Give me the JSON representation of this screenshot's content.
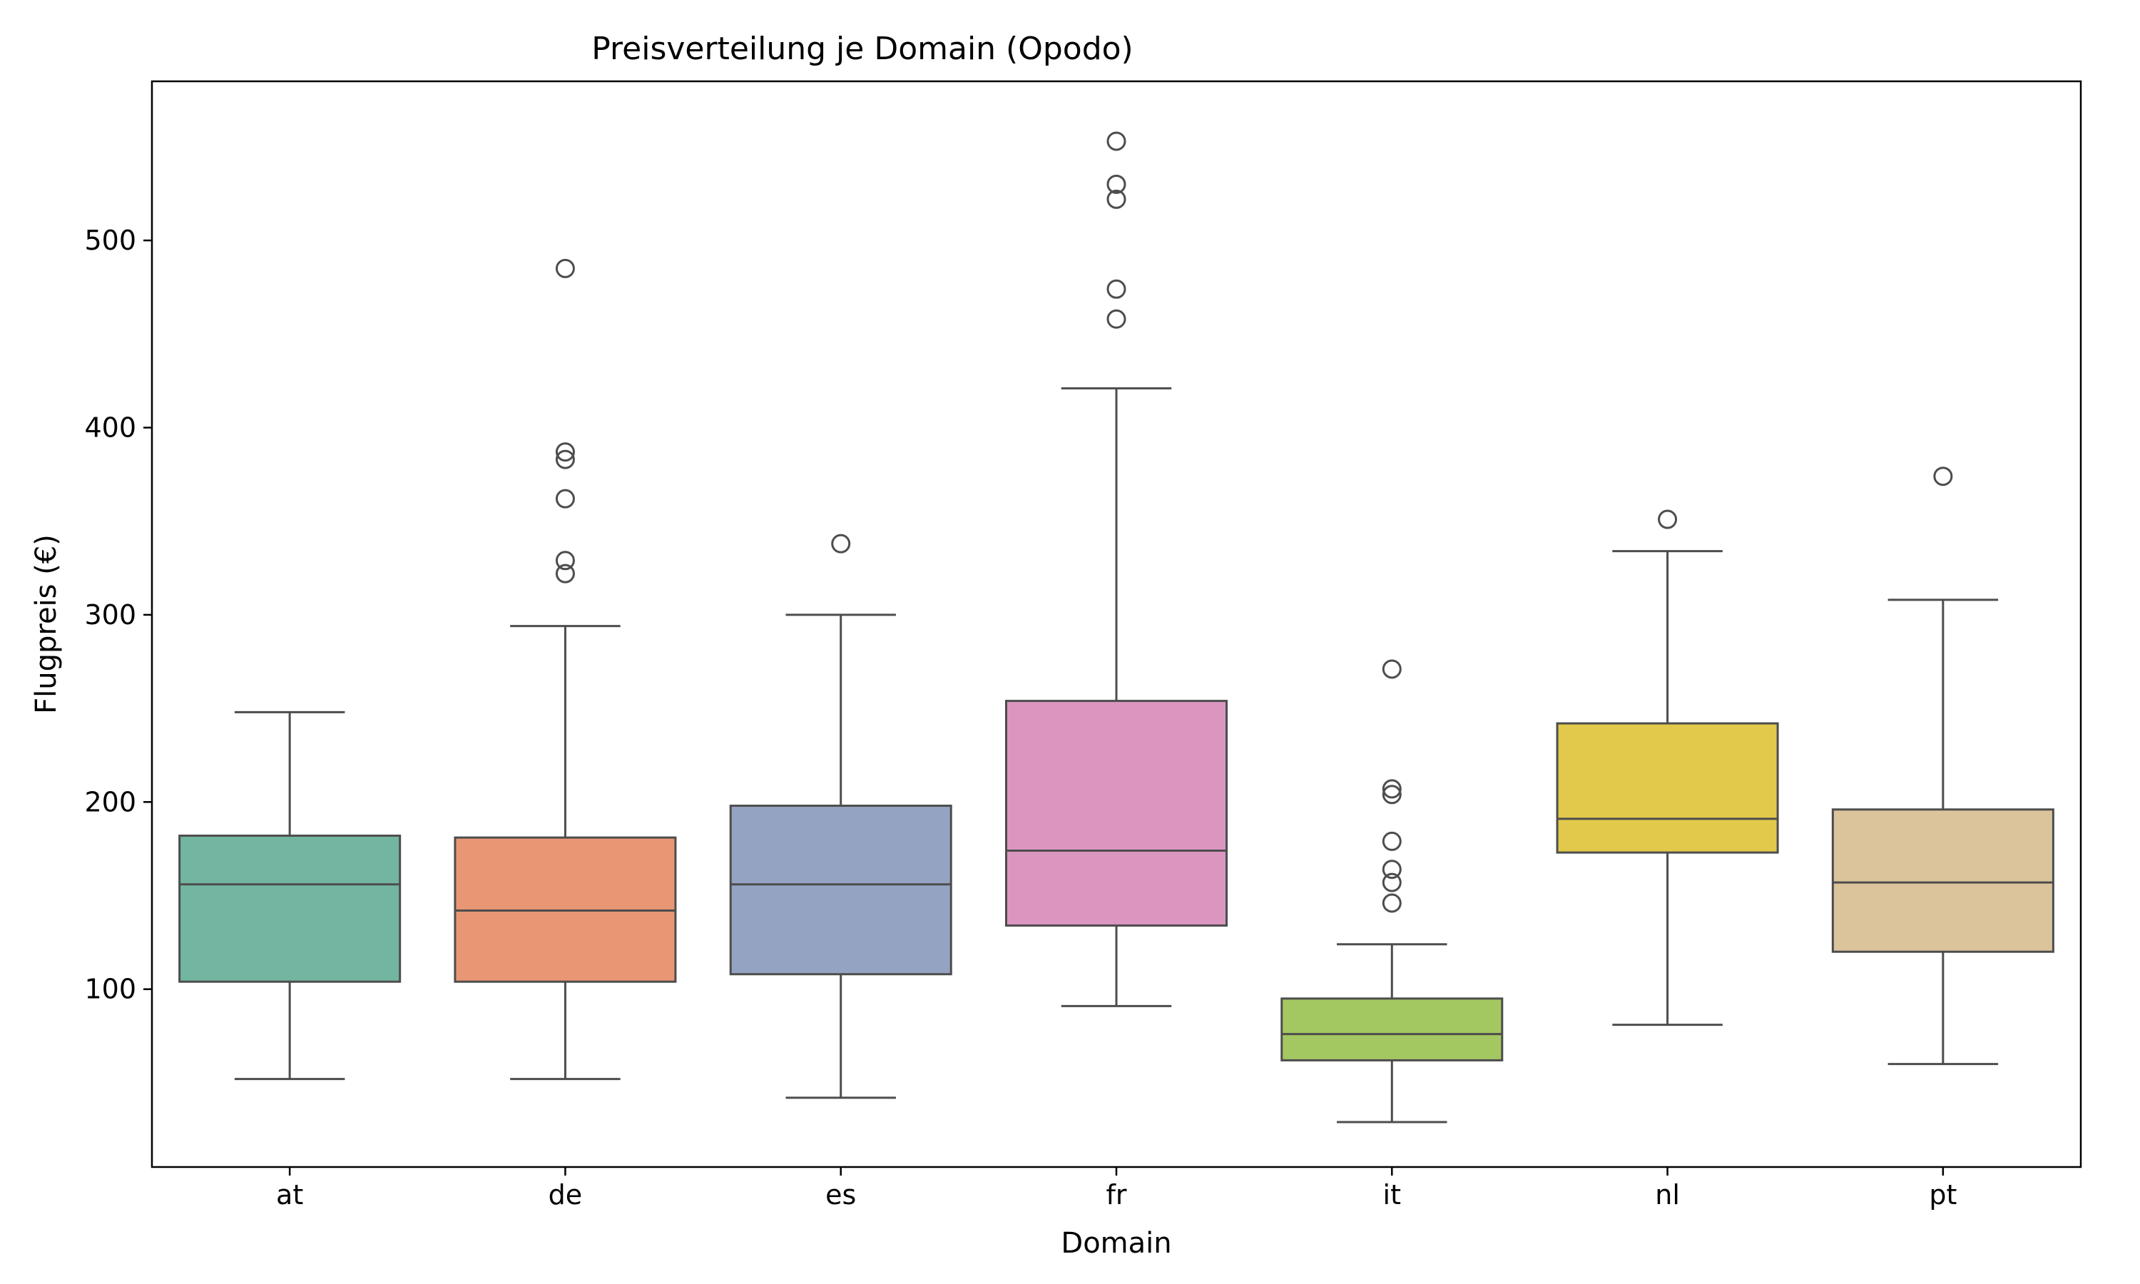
{
  "chart_data": {
    "type": "box",
    "title": "Preisverteilung je Domain (Opodo)",
    "xlabel": "Domain",
    "ylabel": "Flugpreis (€)",
    "ylim": [
      5,
      585
    ],
    "yticks": [
      100,
      200,
      300,
      400,
      500
    ],
    "grid": false,
    "legend": "none",
    "categories": [
      "at",
      "de",
      "es",
      "fr",
      "it",
      "nl",
      "pt"
    ],
    "boxes": [
      {
        "category": "at",
        "color": "#72b6a1",
        "whisker_low": 52,
        "q1": 104,
        "median": 156,
        "q3": 182,
        "whisker_high": 248,
        "outliers": []
      },
      {
        "category": "de",
        "color": "#e99675",
        "whisker_low": 52,
        "q1": 104,
        "median": 142,
        "q3": 181,
        "whisker_high": 294,
        "outliers": [
          322,
          329,
          362,
          383,
          387,
          485
        ]
      },
      {
        "category": "es",
        "color": "#95a3c3",
        "whisker_low": 42,
        "q1": 108,
        "median": 156,
        "q3": 198,
        "whisker_high": 300,
        "outliers": [
          338
        ]
      },
      {
        "category": "fr",
        "color": "#db96c0",
        "whisker_low": 91,
        "q1": 134,
        "median": 174,
        "q3": 254,
        "whisker_high": 421,
        "outliers": [
          458,
          474,
          522,
          530,
          553
        ]
      },
      {
        "category": "it",
        "color": "#a4c861",
        "whisker_low": 29,
        "q1": 62,
        "median": 76,
        "q3": 95,
        "whisker_high": 124,
        "outliers": [
          146,
          157,
          164,
          179,
          204,
          207,
          271
        ]
      },
      {
        "category": "nl",
        "color": "#e2c94b",
        "whisker_low": 81,
        "q1": 173,
        "median": 191,
        "q3": 242,
        "whisker_high": 334,
        "outliers": [
          351
        ]
      },
      {
        "category": "pt",
        "color": "#dbc39b",
        "whisker_low": 60,
        "q1": 120,
        "median": 157,
        "q3": 196,
        "whisker_high": 308,
        "outliers": [
          374
        ]
      }
    ]
  }
}
